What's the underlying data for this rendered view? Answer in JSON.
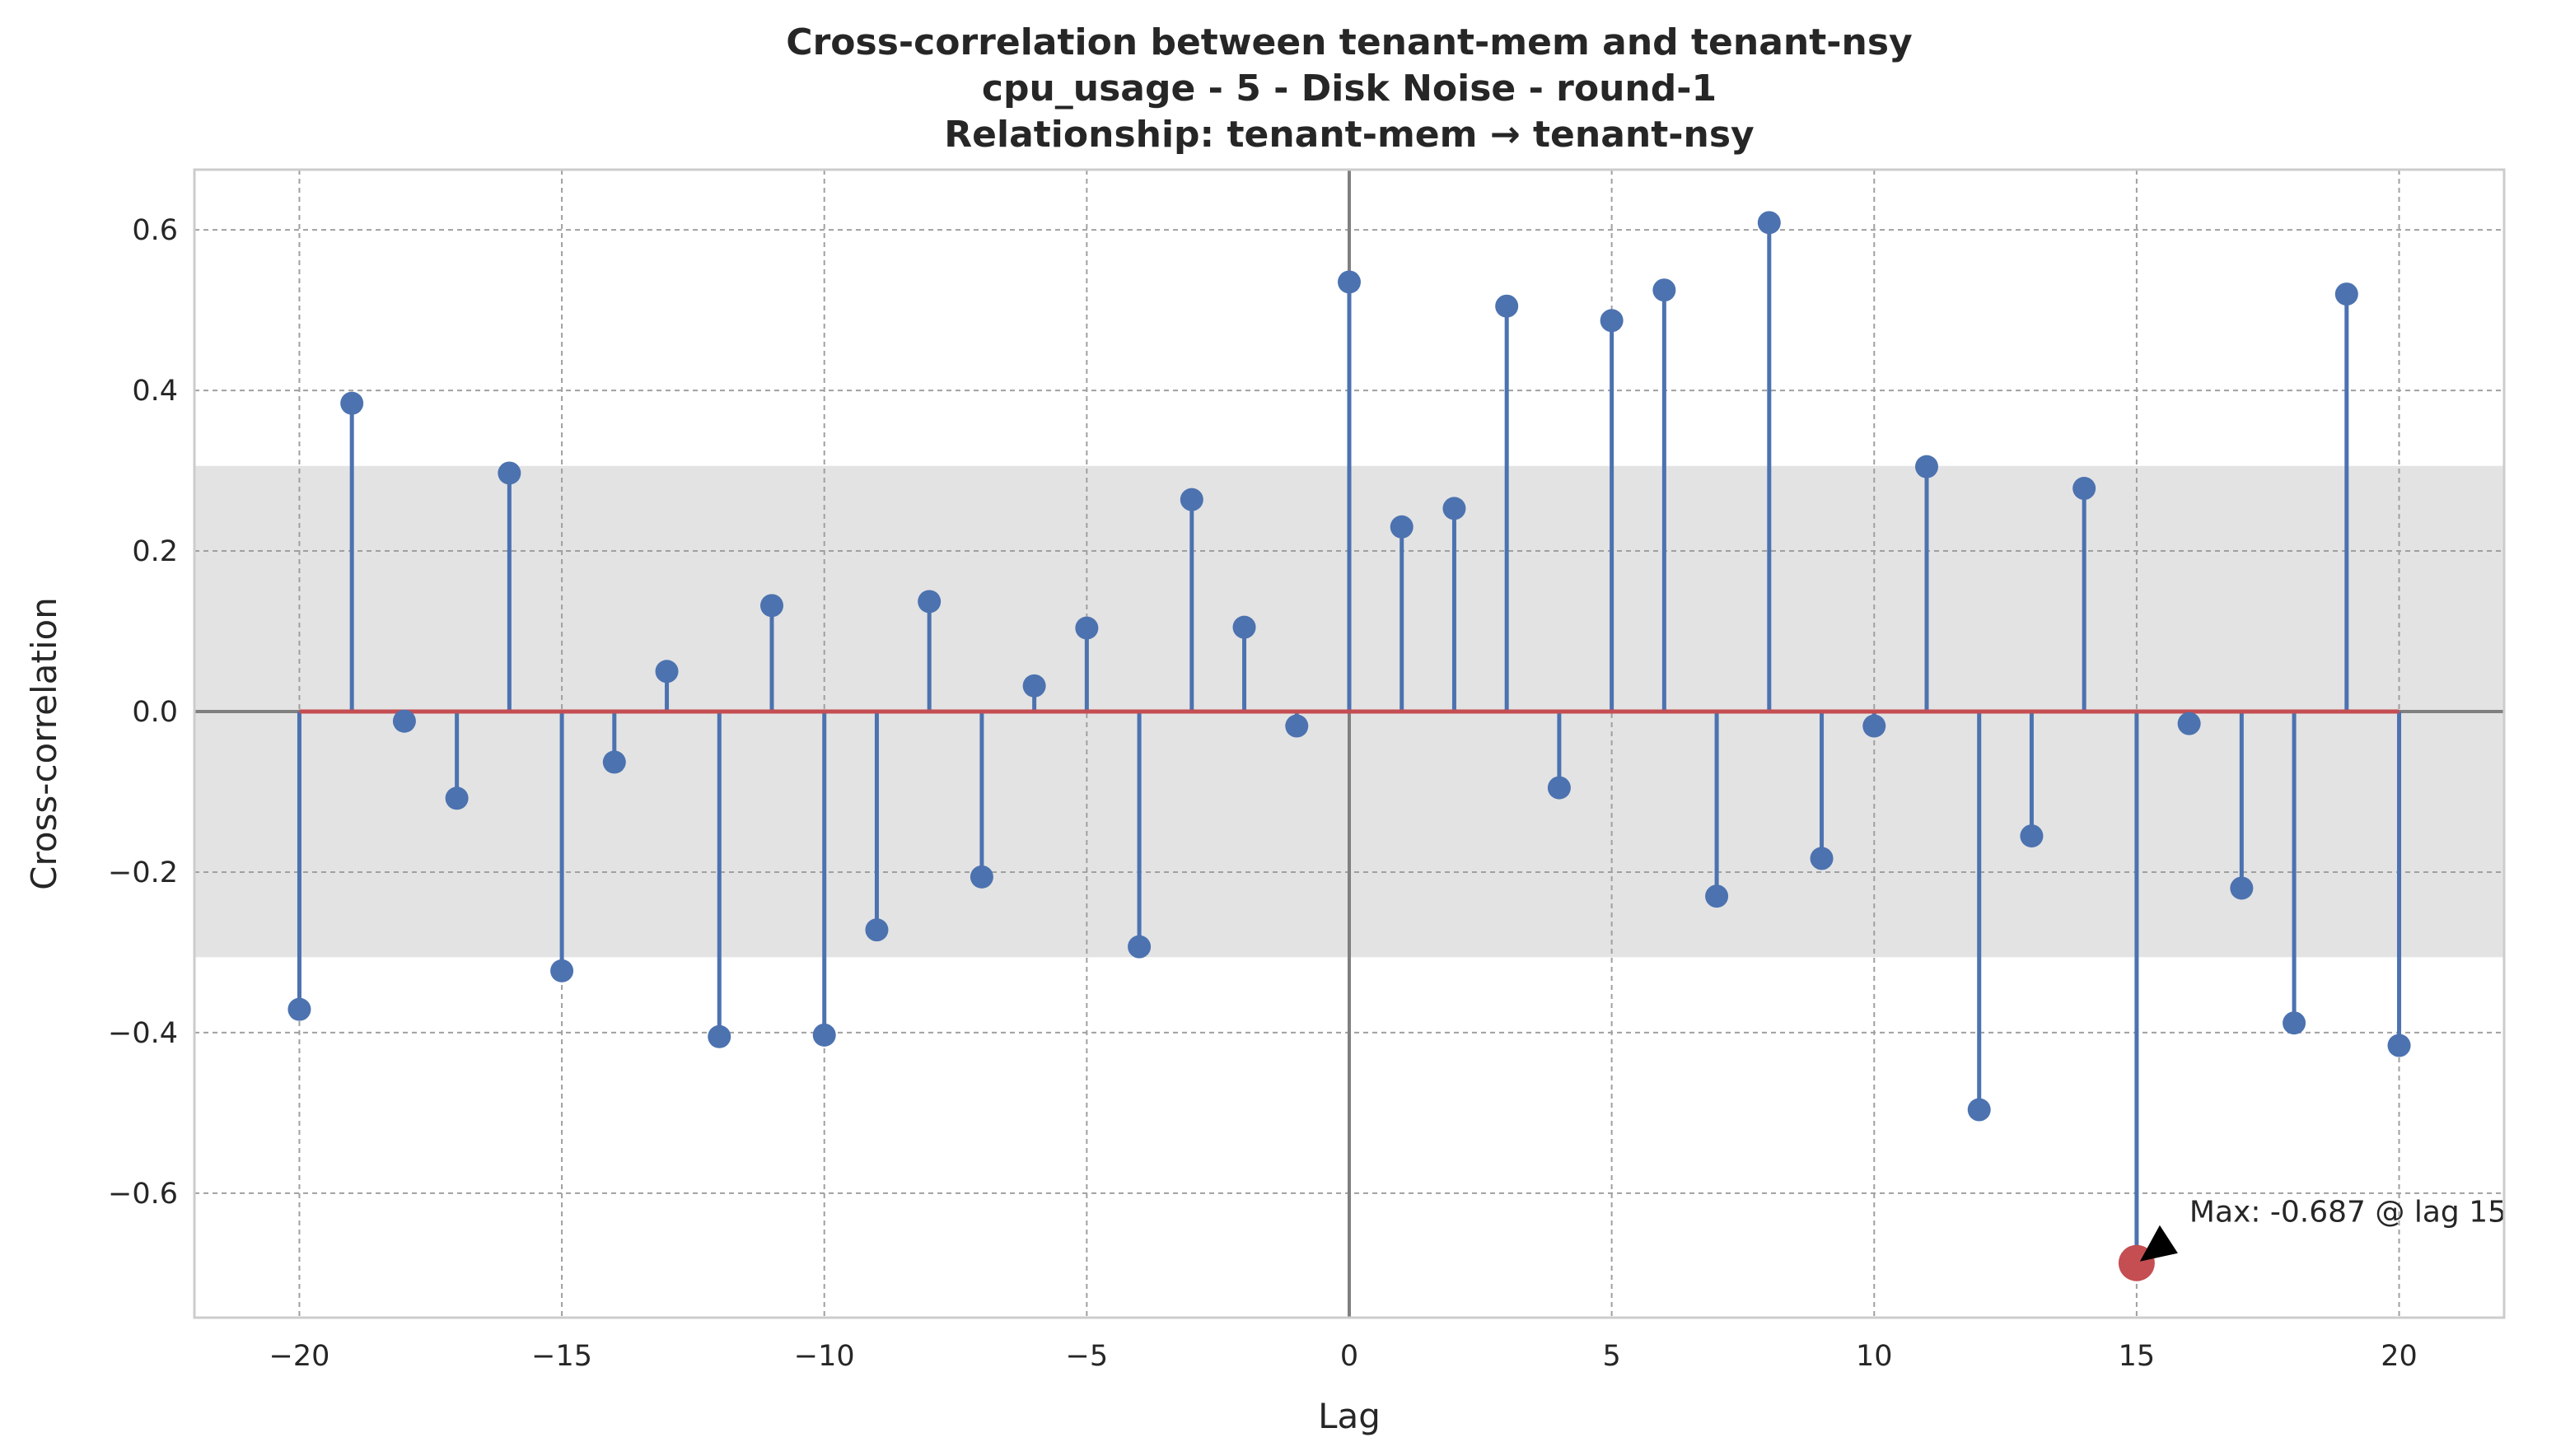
{
  "chart_data": {
    "type": "stem",
    "title_lines": [
      "Cross-correlation between tenant-mem and tenant-nsy",
      "cpu_usage - 5 - Disk Noise - round-1",
      "Relationship: tenant-mem → tenant-nsy"
    ],
    "xlabel": "Lag",
    "ylabel": "Cross-correlation",
    "xlim": [
      -22,
      22
    ],
    "ylim": [
      -0.755,
      0.675
    ],
    "x_ticks": [
      -20,
      -15,
      -10,
      -5,
      0,
      5,
      10,
      15,
      20
    ],
    "x_tick_labels": [
      "−20",
      "−15",
      "−10",
      "−5",
      "0",
      "5",
      "10",
      "15",
      "20"
    ],
    "y_ticks": [
      -0.6,
      -0.4,
      -0.2,
      0.0,
      0.2,
      0.4,
      0.6
    ],
    "y_tick_labels": [
      "−0.6",
      "−0.4",
      "−0.2",
      "0.0",
      "0.2",
      "0.4",
      "0.6"
    ],
    "grid": true,
    "confidence_band": [
      -0.306,
      0.306
    ],
    "lags": [
      -20,
      -19,
      -18,
      -17,
      -16,
      -15,
      -14,
      -13,
      -12,
      -11,
      -10,
      -9,
      -8,
      -7,
      -6,
      -5,
      -4,
      -3,
      -2,
      -1,
      0,
      1,
      2,
      3,
      4,
      5,
      6,
      7,
      8,
      9,
      10,
      11,
      12,
      13,
      14,
      15,
      16,
      17,
      18,
      19,
      20
    ],
    "values": [
      -0.371,
      0.384,
      -0.012,
      -0.108,
      0.297,
      -0.323,
      -0.063,
      0.05,
      -0.405,
      0.132,
      -0.403,
      -0.272,
      0.137,
      -0.206,
      0.032,
      0.104,
      -0.293,
      0.264,
      0.105,
      -0.018,
      0.535,
      0.23,
      0.253,
      0.505,
      -0.095,
      0.487,
      0.525,
      -0.23,
      0.609,
      -0.183,
      -0.018,
      0.305,
      -0.496,
      -0.155,
      0.278,
      -0.687,
      -0.015,
      -0.22,
      -0.388,
      0.52,
      -0.416
    ],
    "max": {
      "lag": 15,
      "value": -0.687
    },
    "annotation": "Max: -0.687 @ lag 15",
    "colors": {
      "stem": "#4c72b0",
      "baseline": "#c44e52",
      "max_marker": "#c44e52",
      "band": "#e3e3e3",
      "zero_line": "#808080",
      "grid": "#a0a0a0",
      "axes": "#cccccc",
      "text": "#262626"
    }
  }
}
